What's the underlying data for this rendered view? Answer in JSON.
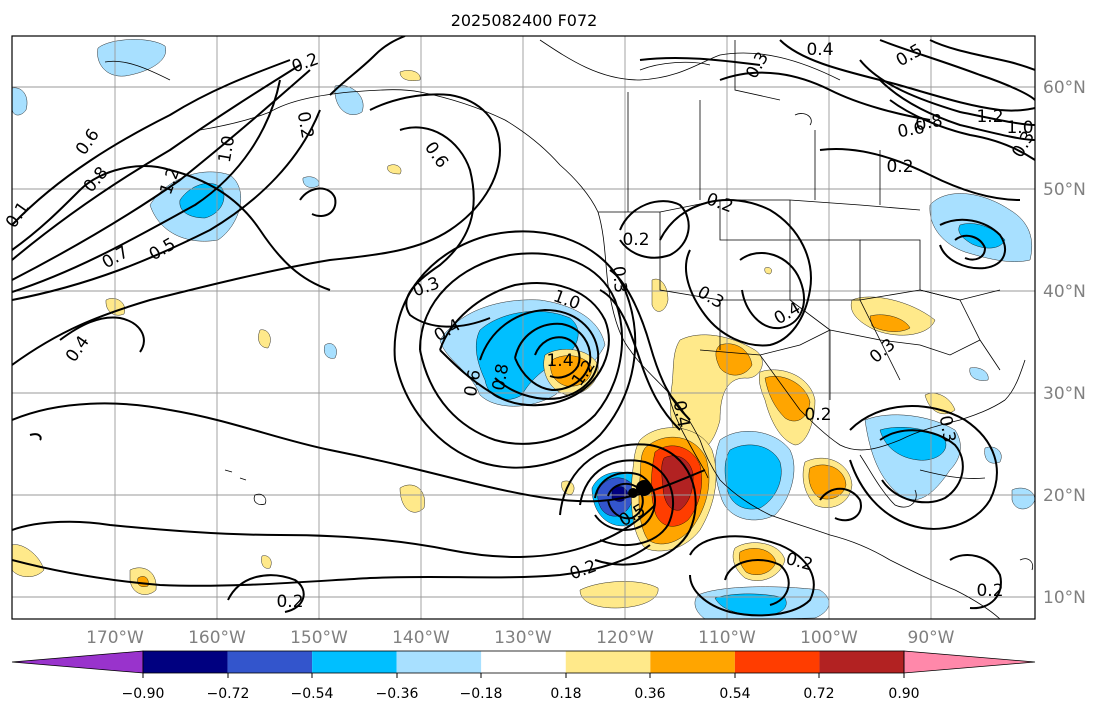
{
  "title": "2025082400 F072",
  "map": {
    "lon_labels": [
      "170°W",
      "160°W",
      "150°W",
      "140°W",
      "130°W",
      "120°W",
      "110°W",
      "100°W",
      "90°W"
    ],
    "lat_labels": [
      "60°N",
      "50°N",
      "40°N",
      "30°N",
      "20°N",
      "10°N"
    ],
    "contour_labels": [
      "0.2",
      "0.1",
      "0.6",
      "0.8",
      "1.0",
      "1.2",
      "0.7",
      "0.5",
      "0.4",
      "0.3",
      "0.6",
      "1.0",
      "1.4",
      "1.2",
      "0.8",
      "0.6",
      "0.4",
      "0.3",
      "0.2",
      "0.2",
      "0.3",
      "0.4",
      "0.2",
      "0.3",
      "0.4",
      "0.5",
      "0.8",
      "0.6",
      "1.2",
      "1.0",
      "0.2",
      "0.3",
      "0.2",
      "0.2",
      "0.5",
      "0.2",
      "0.2",
      "0.4",
      "0.3",
      "0.2",
      "0.3"
    ]
  },
  "colorbar": {
    "ticks": [
      "−0.90",
      "−0.72",
      "−0.54",
      "−0.36",
      "−0.18",
      "0.18",
      "0.36",
      "0.54",
      "0.72",
      "0.90"
    ],
    "colors": {
      "under": "#9933cc",
      "bins": [
        "#000080",
        "#3355cc",
        "#00bfff",
        "#a8e0ff",
        "#ffffff",
        "#ffe98a",
        "#ffa500",
        "#ff3d00",
        "#b22222"
      ],
      "over": "#ff88aa"
    }
  },
  "colors": {
    "negative_light": "#a8e0ff",
    "negative_mid": "#00bfff",
    "negative_strong": "#3355cc",
    "negative_extreme": "#000080",
    "positive_light": "#ffe98a",
    "positive_mid": "#ffa500",
    "positive_strong": "#ff3d00",
    "positive_extreme": "#b22222"
  }
}
